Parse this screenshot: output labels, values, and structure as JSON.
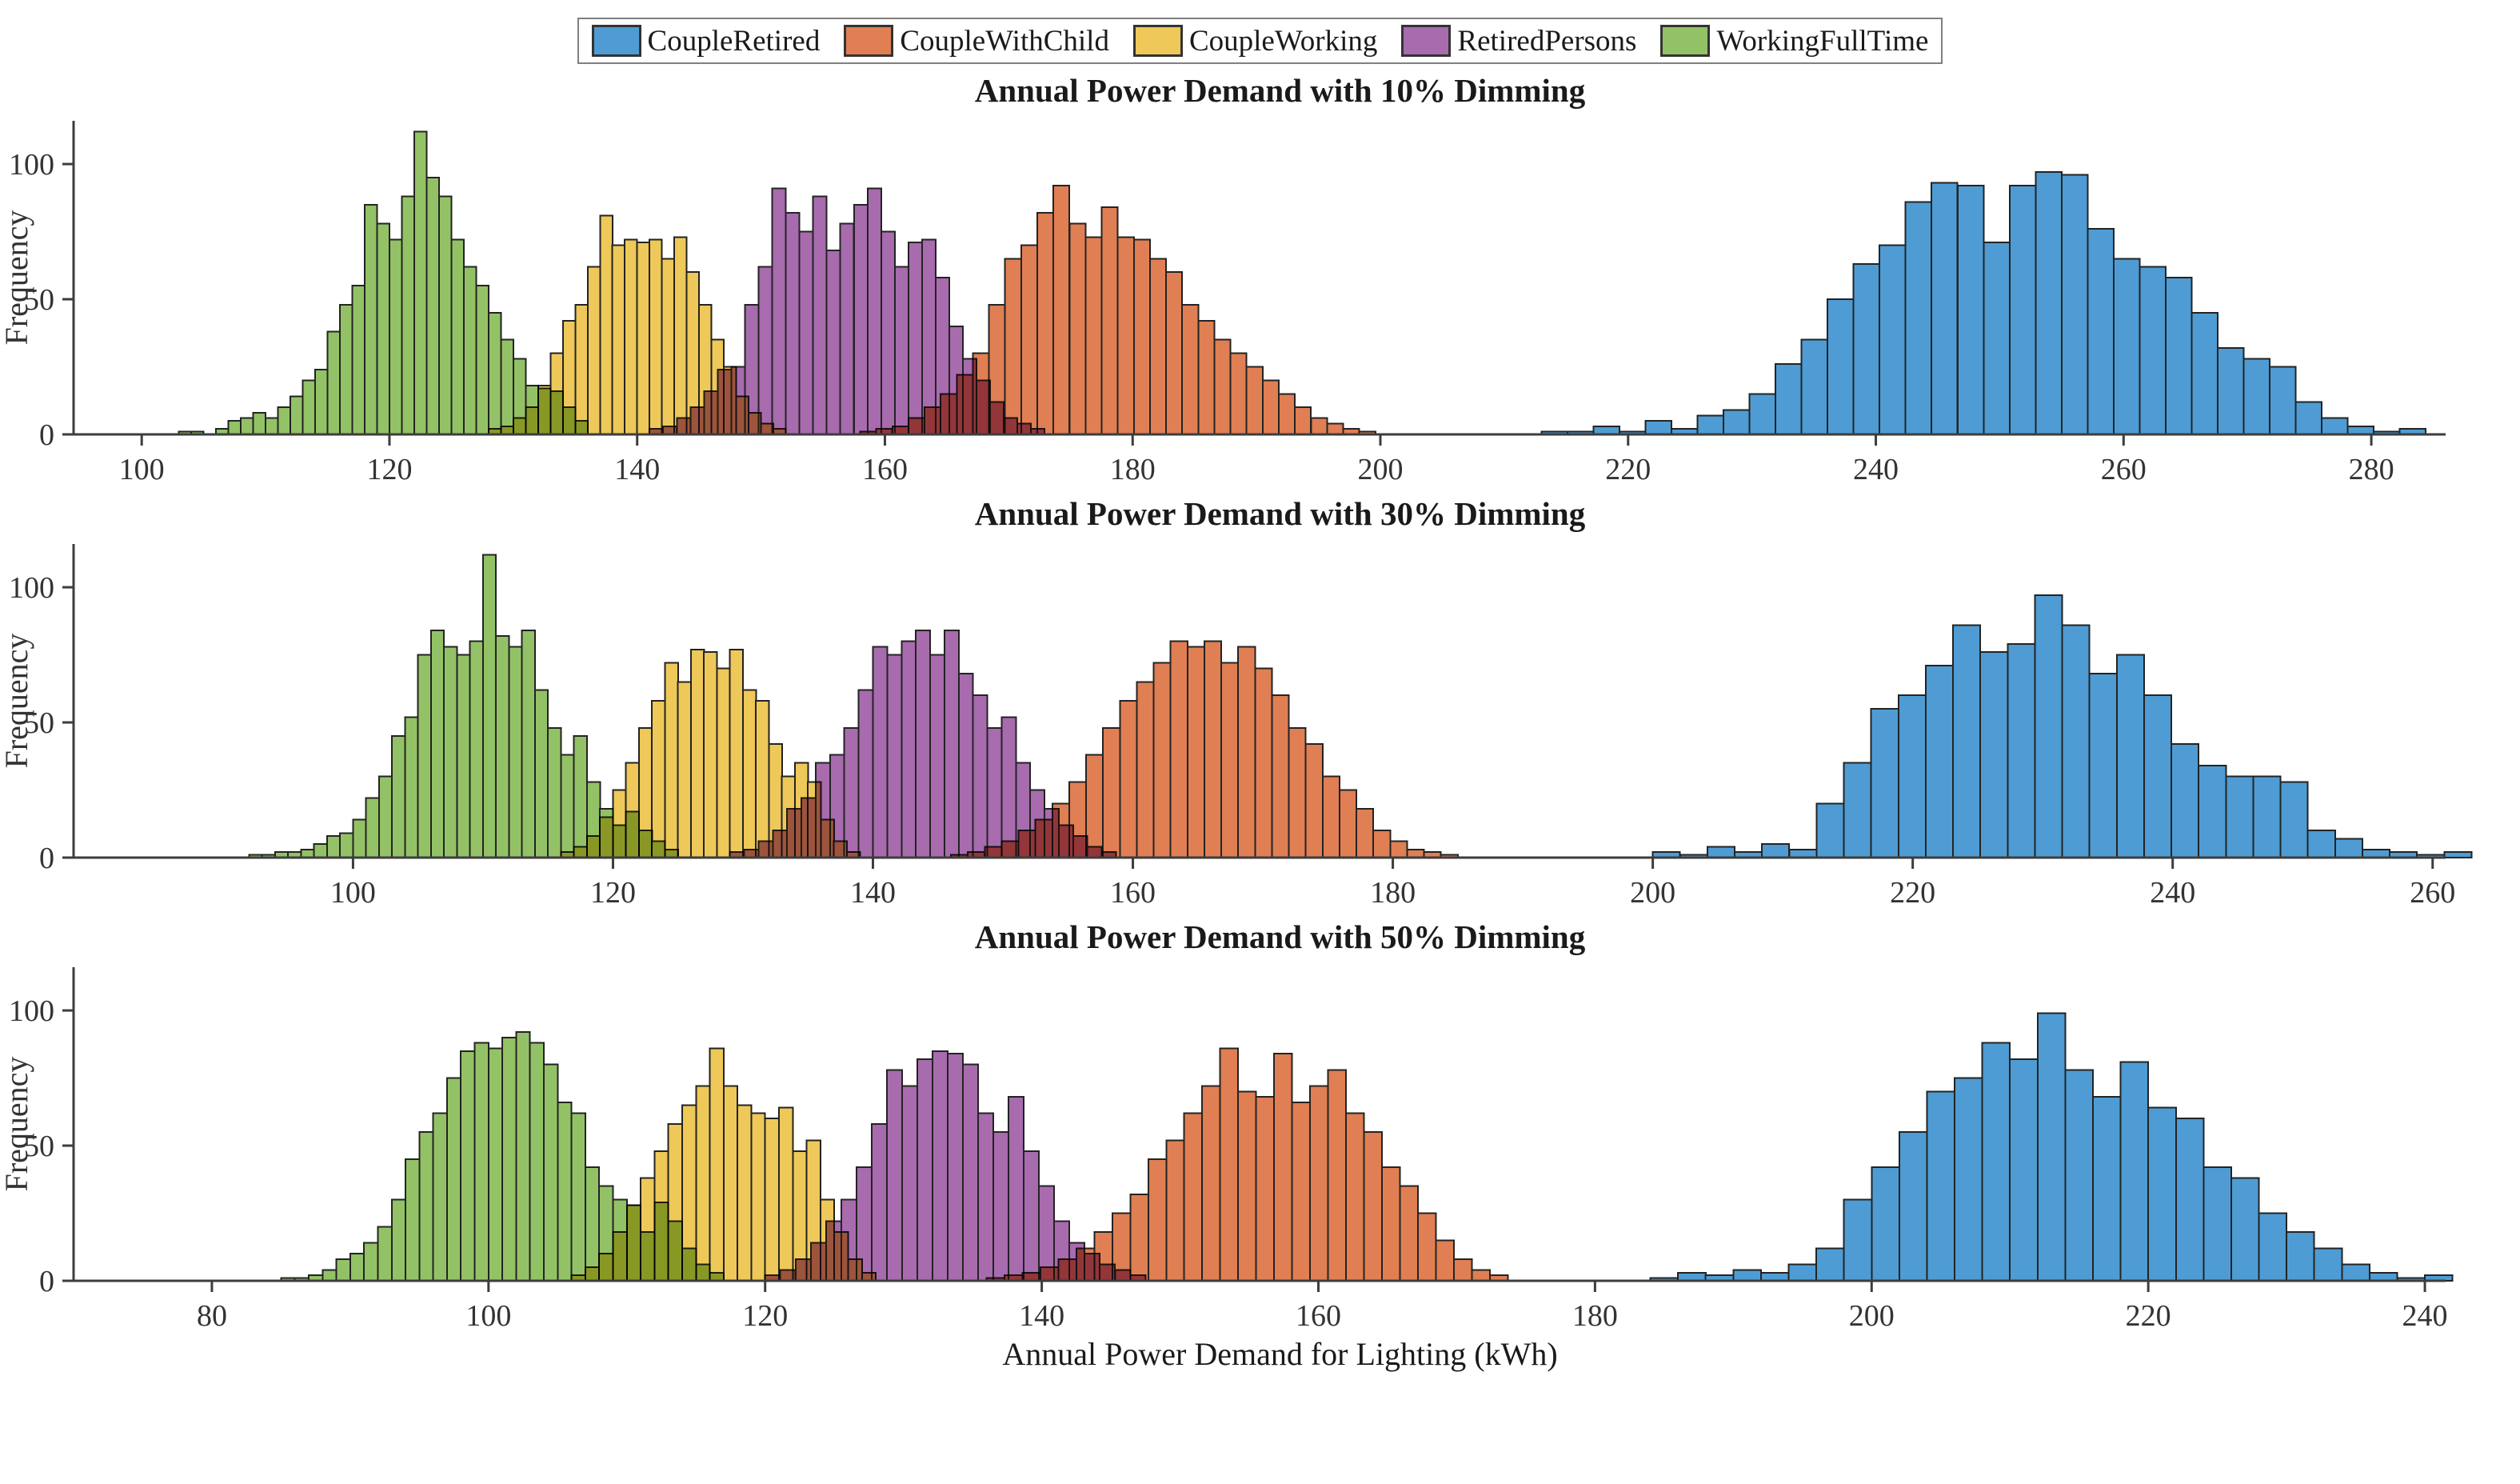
{
  "figure_title": "",
  "xlabel": "Annual Power Demand for Lighting (kWh)",
  "ylabel": "Frequency",
  "axis_color": "#3d3d3d",
  "bar_edge_color": "#232323",
  "legend": {
    "items": [
      {
        "label": "CoupleRetired",
        "color": "#4E9CD3"
      },
      {
        "label": "CoupleWithChild",
        "color": "#DF7F53"
      },
      {
        "label": "CoupleWorking",
        "color": "#EEC858"
      },
      {
        "label": "RetiredPersons",
        "color": "#A76BAE"
      },
      {
        "label": "WorkingFullTime",
        "color": "#93C266"
      }
    ]
  },
  "chart_data": [
    {
      "type": "bar",
      "subtype": "overlaid-histograms",
      "title": "Annual Power Demand with 10% Dimming",
      "xlim": [
        94.5,
        286
      ],
      "ylim": [
        0,
        116
      ],
      "xticks": [
        100,
        120,
        140,
        160,
        180,
        200,
        220,
        240,
        260,
        280
      ],
      "yticks": [
        0,
        50,
        100
      ],
      "grid": false,
      "series": [
        {
          "name": "CoupleRetired",
          "color": "#4E9CD3",
          "bin_start": 213,
          "bin_width": 2.1,
          "counts": [
            1,
            1,
            3,
            1,
            5,
            2,
            7,
            9,
            15,
            26,
            35,
            50,
            63,
            70,
            86,
            93,
            92,
            71,
            92,
            97,
            96,
            76,
            65,
            62,
            58,
            45,
            32,
            28,
            25,
            12,
            6,
            3,
            1,
            2
          ]
        },
        {
          "name": "CoupleWithChild",
          "color": "#DF7F53",
          "bin_start": 158,
          "bin_width": 1.3,
          "counts": [
            1,
            2,
            3,
            6,
            10,
            15,
            22,
            30,
            48,
            65,
            70,
            82,
            92,
            78,
            73,
            84,
            73,
            72,
            65,
            60,
            48,
            42,
            35,
            30,
            25,
            20,
            15,
            10,
            6,
            4,
            2,
            1
          ]
        },
        {
          "name": "CoupleWorking",
          "color": "#EEC858",
          "bin_start": 128,
          "bin_width": 1.0,
          "counts": [
            2,
            3,
            6,
            10,
            18,
            30,
            42,
            48,
            62,
            81,
            70,
            72,
            71,
            72,
            65,
            73,
            60,
            48,
            35,
            25,
            14,
            8,
            4,
            2
          ]
        },
        {
          "name": "RetiredPersons",
          "color": "#A76BAE",
          "bin_start": 141,
          "bin_width": 1.1,
          "counts": [
            2,
            3,
            6,
            10,
            16,
            24,
            25,
            48,
            62,
            91,
            82,
            75,
            88,
            68,
            78,
            85,
            91,
            75,
            62,
            71,
            72,
            58,
            40,
            28,
            20,
            12,
            6,
            4,
            2
          ]
        },
        {
          "name": "WorkingFullTime",
          "color": "#93C266",
          "bin_start": 103,
          "bin_width": 1.0,
          "counts": [
            1,
            1,
            0,
            2,
            5,
            6,
            8,
            6,
            10,
            14,
            20,
            24,
            38,
            48,
            55,
            85,
            78,
            72,
            88,
            112,
            95,
            88,
            72,
            62,
            55,
            45,
            35,
            28,
            18,
            17,
            16,
            10,
            5
          ]
        }
      ]
    },
    {
      "type": "bar",
      "subtype": "overlaid-histograms",
      "title": "Annual Power Demand with 30% Dimming",
      "xlim": [
        78.5,
        261
      ],
      "ylim": [
        0,
        116
      ],
      "xticks": [
        100,
        120,
        140,
        160,
        180,
        200,
        220,
        240,
        260
      ],
      "yticks": [
        0,
        50,
        100
      ],
      "grid": false,
      "series": [
        {
          "name": "CoupleRetired",
          "color": "#4E9CD3",
          "bin_start": 200,
          "bin_width": 2.1,
          "counts": [
            2,
            1,
            4,
            2,
            5,
            3,
            20,
            35,
            55,
            60,
            71,
            86,
            76,
            79,
            97,
            86,
            68,
            75,
            60,
            42,
            34,
            30,
            30,
            28,
            10,
            7,
            3,
            2,
            1,
            2
          ]
        },
        {
          "name": "CoupleWithChild",
          "color": "#DF7F53",
          "bin_start": 146,
          "bin_width": 1.3,
          "counts": [
            1,
            2,
            4,
            6,
            10,
            14,
            20,
            28,
            38,
            48,
            58,
            65,
            72,
            80,
            78,
            80,
            72,
            78,
            70,
            60,
            48,
            42,
            30,
            25,
            18,
            10,
            6,
            3,
            2,
            1
          ]
        },
        {
          "name": "CoupleWorking",
          "color": "#EEC858",
          "bin_start": 116,
          "bin_width": 1.0,
          "counts": [
            2,
            4,
            8,
            15,
            25,
            35,
            48,
            58,
            72,
            65,
            77,
            76,
            70,
            77,
            62,
            58,
            42,
            30,
            35,
            28,
            14,
            6,
            2
          ]
        },
        {
          "name": "RetiredPersons",
          "color": "#A76BAE",
          "bin_start": 129,
          "bin_width": 1.1,
          "counts": [
            2,
            3,
            6,
            10,
            18,
            22,
            35,
            38,
            48,
            62,
            78,
            75,
            80,
            84,
            75,
            84,
            68,
            60,
            48,
            52,
            35,
            25,
            18,
            12,
            8,
            4,
            2
          ]
        },
        {
          "name": "WorkingFullTime",
          "color": "#93C266",
          "bin_start": 92,
          "bin_width": 1.0,
          "counts": [
            1,
            1,
            2,
            2,
            3,
            5,
            8,
            9,
            14,
            22,
            30,
            45,
            52,
            75,
            84,
            78,
            75,
            80,
            112,
            82,
            78,
            84,
            62,
            48,
            38,
            45,
            28,
            18,
            12,
            17,
            10,
            6,
            3
          ]
        }
      ]
    },
    {
      "type": "bar",
      "subtype": "overlaid-histograms",
      "title": "Annual Power Demand with 50% Dimming",
      "xlim": [
        70,
        241.5
      ],
      "ylim": [
        0,
        116
      ],
      "xticks": [
        80,
        100,
        120,
        140,
        160,
        180,
        200,
        220,
        240
      ],
      "yticks": [
        0,
        50,
        100
      ],
      "grid": false,
      "series": [
        {
          "name": "CoupleRetired",
          "color": "#4E9CD3",
          "bin_start": 184,
          "bin_width": 2.0,
          "counts": [
            1,
            3,
            2,
            4,
            3,
            6,
            12,
            30,
            42,
            55,
            70,
            75,
            88,
            82,
            99,
            78,
            68,
            81,
            64,
            60,
            42,
            38,
            25,
            18,
            12,
            6,
            3,
            1,
            2
          ]
        },
        {
          "name": "CoupleWithChild",
          "color": "#DF7F53",
          "bin_start": 136,
          "bin_width": 1.3,
          "counts": [
            1,
            2,
            3,
            5,
            8,
            12,
            18,
            25,
            32,
            45,
            52,
            62,
            72,
            86,
            70,
            68,
            84,
            66,
            72,
            78,
            62,
            55,
            42,
            35,
            25,
            15,
            8,
            4,
            2
          ]
        },
        {
          "name": "CoupleWorking",
          "color": "#EEC858",
          "bin_start": 106,
          "bin_width": 1.0,
          "counts": [
            2,
            5,
            10,
            18,
            28,
            38,
            48,
            58,
            65,
            72,
            86,
            72,
            65,
            62,
            60,
            64,
            48,
            52,
            30,
            18,
            8,
            3
          ]
        },
        {
          "name": "RetiredPersons",
          "color": "#A76BAE",
          "bin_start": 120,
          "bin_width": 1.1,
          "counts": [
            2,
            4,
            8,
            14,
            22,
            30,
            42,
            58,
            78,
            72,
            82,
            85,
            84,
            80,
            62,
            55,
            68,
            48,
            35,
            22,
            14,
            10,
            6,
            4,
            2
          ]
        },
        {
          "name": "WorkingFullTime",
          "color": "#93C266",
          "bin_start": 85,
          "bin_width": 1.0,
          "counts": [
            1,
            1,
            2,
            4,
            8,
            10,
            14,
            20,
            30,
            45,
            55,
            62,
            75,
            85,
            88,
            86,
            90,
            92,
            88,
            80,
            66,
            62,
            42,
            35,
            30,
            28,
            18,
            29,
            22,
            12,
            6,
            3
          ]
        }
      ]
    }
  ]
}
